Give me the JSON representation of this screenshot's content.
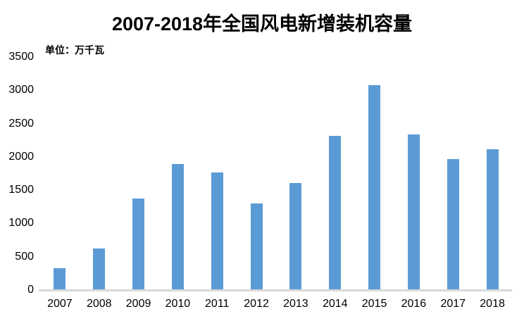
{
  "chart_data": {
    "type": "bar",
    "title": "2007-2018年全国风电新增装机容量",
    "unit_label": "单位：万千瓦",
    "xlabel": "",
    "ylabel": "",
    "categories": [
      "2007",
      "2008",
      "2009",
      "2010",
      "2011",
      "2012",
      "2013",
      "2014",
      "2015",
      "2016",
      "2017",
      "2018"
    ],
    "values": [
      330,
      625,
      1380,
      1893,
      1763,
      1296,
      1609,
      2320,
      3075,
      2337,
      1966,
      2114
    ],
    "ylim": [
      0,
      3500
    ],
    "y_ticks": [
      0,
      500,
      1000,
      1500,
      2000,
      2500,
      3000,
      3500
    ],
    "grid": "off",
    "legend": "none",
    "colors": {
      "bar": "#5B9BD5",
      "axis_line": "#D9D9D9",
      "text": "#000000"
    }
  }
}
